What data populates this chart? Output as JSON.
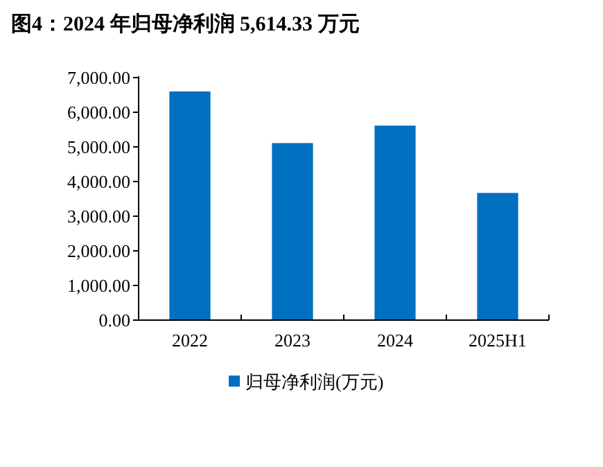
{
  "chart_data": {
    "type": "bar",
    "title": "图4：2024 年归母净利润 5,614.33 万元",
    "categories": [
      "2022",
      "2023",
      "2024",
      "2025H1"
    ],
    "series": [
      {
        "name": "归母净利润(万元)",
        "color": "#0070c0",
        "values": [
          6600,
          5110,
          5614.33,
          3670
        ]
      }
    ],
    "ylim": [
      0,
      7000
    ],
    "yticks": [
      {
        "value": 0,
        "label": "0.00"
      },
      {
        "value": 1000,
        "label": "1,000.00"
      },
      {
        "value": 2000,
        "label": "2,000.00"
      },
      {
        "value": 3000,
        "label": "3,000.00"
      },
      {
        "value": 4000,
        "label": "4,000.00"
      },
      {
        "value": 5000,
        "label": "5,000.00"
      },
      {
        "value": 6000,
        "label": "6,000.00"
      },
      {
        "value": 7000,
        "label": "7,000.00"
      }
    ],
    "grid": false,
    "legend": "bottom"
  }
}
